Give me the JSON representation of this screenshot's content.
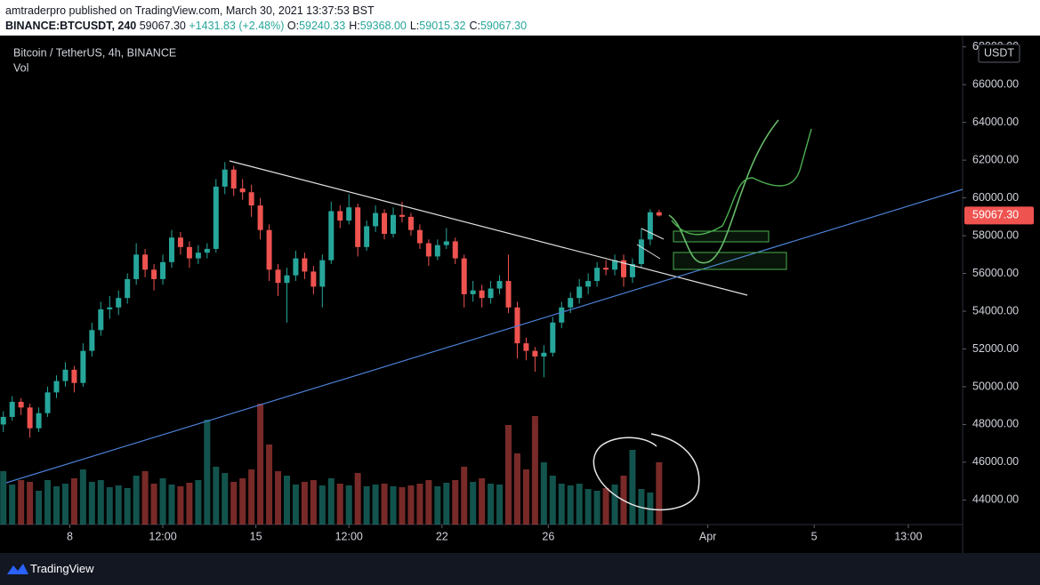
{
  "header": {
    "line1": "amtraderpro published on TradingView.com, March 30, 2021 13:37:53 BST",
    "symbol": "BINANCE:BTCUSDT, 240",
    "price": "59067.30",
    "change": "+1431.83 (+2.48%)",
    "ohlc": [
      {
        "label": "O:",
        "value": "59240.33"
      },
      {
        "label": "H:",
        "value": "59368.00"
      },
      {
        "label": "L:",
        "value": "59015.32"
      },
      {
        "label": "C:",
        "value": "59067.30"
      }
    ]
  },
  "footer": {
    "brand": "TradingView"
  },
  "chart_data": {
    "type": "candlestick",
    "legend": "Bitcoin / TetherUS, 4h, BINANCE",
    "volume_label": "Vol",
    "currency": "USDT",
    "up_color": "#26a69a",
    "down_color": "#ef5350",
    "last_price": {
      "value": 59067.3,
      "label": "59067.30"
    },
    "xlim": [
      129,
      998
    ],
    "xticks": [
      {
        "value": 192,
        "label": "8"
      },
      {
        "value": 276,
        "label": "12:00"
      },
      {
        "value": 360,
        "label": "15"
      },
      {
        "value": 444,
        "label": "12:00"
      },
      {
        "value": 528,
        "label": "22"
      },
      {
        "value": 624,
        "label": "26"
      },
      {
        "value": 768,
        "label": "Apr"
      },
      {
        "value": 864,
        "label": "5"
      },
      {
        "value": 949,
        "label": "13:00"
      }
    ],
    "ylim": [
      42700,
      68600
    ],
    "yticks": [
      {
        "value": 44000,
        "label": "44000.00"
      },
      {
        "value": 46000,
        "label": "46000.00"
      },
      {
        "value": 48000,
        "label": "48000.00"
      },
      {
        "value": 50000,
        "label": "50000.00"
      },
      {
        "value": 52000,
        "label": "52000.00"
      },
      {
        "value": 54000,
        "label": "54000.00"
      },
      {
        "value": 56000,
        "label": "56000.00"
      },
      {
        "value": 58000,
        "label": "58000.00"
      },
      {
        "value": 60000,
        "label": "60000.00"
      },
      {
        "value": 62000,
        "label": "62000.00"
      },
      {
        "value": 64000,
        "label": "64000.00"
      },
      {
        "value": 66000,
        "label": "66000.00"
      },
      {
        "value": 68000,
        "label": "68000.00"
      }
    ],
    "x": [
      132,
      140,
      148,
      156,
      164,
      172,
      180,
      188,
      196,
      204,
      212,
      220,
      228,
      236,
      244,
      252,
      260,
      268,
      276,
      284,
      292,
      300,
      308,
      316,
      324,
      332,
      340,
      348,
      356,
      364,
      372,
      380,
      388,
      396,
      404,
      412,
      420,
      428,
      436,
      444,
      452,
      460,
      468,
      476,
      484,
      492,
      500,
      508,
      516,
      524,
      532,
      540,
      548,
      556,
      564,
      572,
      580,
      588,
      596,
      604,
      612,
      620,
      628,
      636,
      644,
      652,
      660,
      668,
      676,
      684,
      692,
      700,
      708,
      716,
      724
    ],
    "candles": [
      [
        48000,
        48700,
        47600,
        48400
      ],
      [
        48400,
        49500,
        48200,
        49200
      ],
      [
        49200,
        49400,
        48500,
        48900
      ],
      [
        48900,
        49100,
        47300,
        47800
      ],
      [
        47800,
        48900,
        47600,
        48600
      ],
      [
        48600,
        50000,
        48400,
        49700
      ],
      [
        49700,
        50600,
        49400,
        50300
      ],
      [
        50300,
        51300,
        50000,
        50900
      ],
      [
        50900,
        51100,
        49700,
        50200
      ],
      [
        50200,
        52300,
        50000,
        51900
      ],
      [
        51900,
        53400,
        51600,
        53000
      ],
      [
        53000,
        54500,
        52700,
        54100
      ],
      [
        54100,
        54800,
        53600,
        54200
      ],
      [
        54200,
        55100,
        53800,
        54700
      ],
      [
        54700,
        56000,
        54400,
        55700
      ],
      [
        55700,
        57600,
        55400,
        57000
      ],
      [
        57000,
        57300,
        55800,
        56200
      ],
      [
        56200,
        56500,
        55100,
        55700
      ],
      [
        55700,
        57000,
        55400,
        56600
      ],
      [
        56600,
        58300,
        56300,
        57900
      ],
      [
        57900,
        58200,
        57000,
        57400
      ],
      [
        57400,
        57700,
        56300,
        56800
      ],
      [
        56800,
        57500,
        56500,
        57100
      ],
      [
        57100,
        57600,
        56800,
        57300
      ],
      [
        57300,
        61000,
        57100,
        60600
      ],
      [
        60600,
        61900,
        60200,
        61500
      ],
      [
        61500,
        61700,
        60100,
        60500
      ],
      [
        60500,
        61000,
        59900,
        60300
      ],
      [
        60300,
        60700,
        59000,
        59600
      ],
      [
        59600,
        60000,
        57800,
        58300
      ],
      [
        58300,
        58600,
        55600,
        56200
      ],
      [
        56200,
        56500,
        54800,
        55500
      ],
      [
        55500,
        56300,
        53400,
        55900
      ],
      [
        55900,
        57200,
        55600,
        56800
      ],
      [
        56800,
        57100,
        55700,
        56100
      ],
      [
        56100,
        56400,
        54900,
        55300
      ],
      [
        55300,
        57000,
        54200,
        56700
      ],
      [
        56700,
        59800,
        56500,
        59300
      ],
      [
        59300,
        59600,
        58400,
        58800
      ],
      [
        58800,
        60200,
        58600,
        59500
      ],
      [
        59500,
        59700,
        56900,
        57400
      ],
      [
        57400,
        58800,
        57200,
        58500
      ],
      [
        58500,
        59600,
        58200,
        59200
      ],
      [
        59200,
        59400,
        57800,
        58100
      ],
      [
        58100,
        59500,
        57900,
        59100
      ],
      [
        59100,
        59800,
        58700,
        59000
      ],
      [
        59000,
        59200,
        58000,
        58300
      ],
      [
        58300,
        58600,
        57300,
        57600
      ],
      [
        57600,
        57800,
        56400,
        56900
      ],
      [
        56900,
        57800,
        56700,
        57500
      ],
      [
        57500,
        58400,
        57300,
        57700
      ],
      [
        57700,
        57900,
        56500,
        56800
      ],
      [
        56800,
        57000,
        54200,
        54900
      ],
      [
        54900,
        55600,
        54500,
        55100
      ],
      [
        55100,
        55400,
        54200,
        54700
      ],
      [
        54700,
        55600,
        54400,
        55200
      ],
      [
        55200,
        55900,
        54900,
        55600
      ],
      [
        55600,
        57000,
        53900,
        54200
      ],
      [
        54200,
        54500,
        51500,
        52300
      ],
      [
        52300,
        52600,
        51400,
        51900
      ],
      [
        51900,
        52100,
        50800,
        51600
      ],
      [
        51600,
        52200,
        50500,
        51800
      ],
      [
        51800,
        53700,
        51600,
        53400
      ],
      [
        53400,
        54500,
        53100,
        54200
      ],
      [
        54200,
        55000,
        53900,
        54700
      ],
      [
        54700,
        55700,
        54400,
        55300
      ],
      [
        55300,
        56000,
        54900,
        55600
      ],
      [
        55600,
        56600,
        55300,
        56300
      ],
      [
        56300,
        56700,
        55900,
        56200
      ],
      [
        56200,
        57000,
        55900,
        56700
      ],
      [
        56700,
        57000,
        55300,
        55800
      ],
      [
        55800,
        56800,
        55500,
        56500
      ],
      [
        56500,
        58400,
        56300,
        57800
      ],
      [
        57800,
        59400,
        57500,
        59240.33
      ],
      [
        59240.33,
        59368,
        59015.32,
        59067.3
      ]
    ],
    "volume": [
      6000,
      4500,
      5000,
      4800,
      3800,
      5000,
      4300,
      4600,
      5200,
      6200,
      4800,
      5000,
      4200,
      4400,
      4100,
      5500,
      6000,
      4600,
      5200,
      4500,
      4300,
      4700,
      5000,
      11800,
      6500,
      5800,
      4800,
      5200,
      6200,
      13600,
      9000,
      6000,
      5500,
      4500,
      4800,
      5000,
      4400,
      5200,
      4600,
      4400,
      5800,
      4300,
      4500,
      4600,
      4300,
      4200,
      4400,
      4600,
      5000,
      4300,
      4700,
      5000,
      6500,
      4800,
      5200,
      4600,
      4500,
      11200,
      8000,
      6200,
      12200,
      7000,
      5500,
      4600,
      4400,
      4600,
      4000,
      3800,
      4100,
      4500,
      5500,
      8400,
      4000,
      3600,
      7000
    ]
  }
}
